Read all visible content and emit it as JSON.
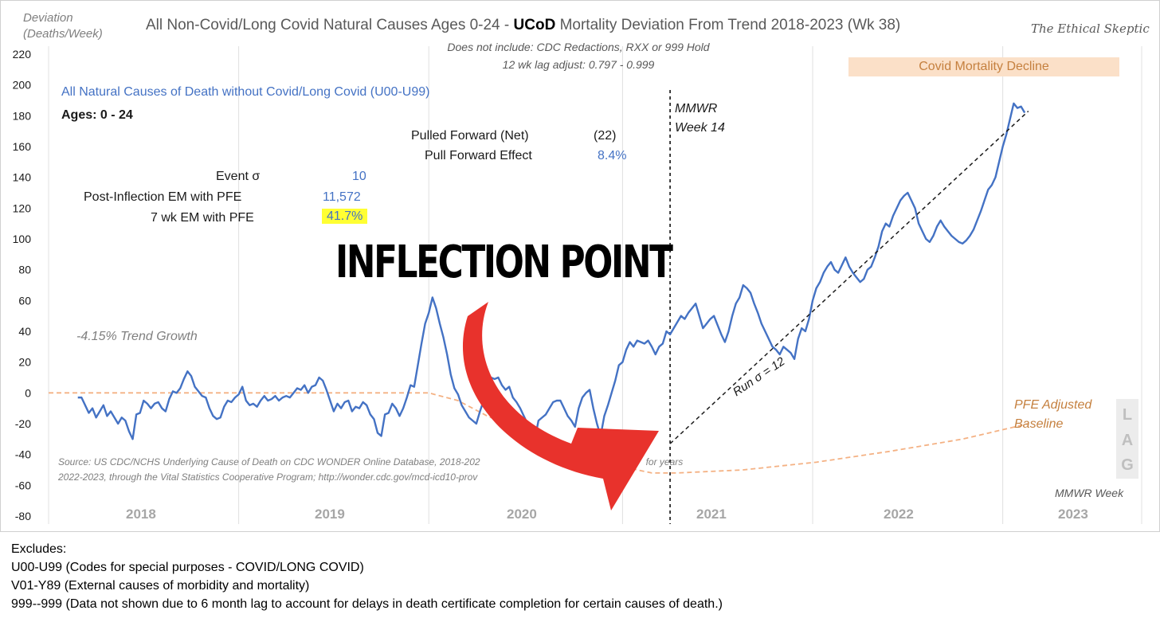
{
  "header": {
    "ylabel_line1": "Deviation",
    "ylabel_line2": "(Deaths/Week)",
    "title_pre": "All Non-Covid/Long Covid Natural Causes Ages 0-24 - ",
    "title_bold": "UCoD",
    "title_post": " Mortality Deviation From Trend  2018-2023 (Wk 38)",
    "brand": "The Ethical Skeptic",
    "subtitle_line1": "Does not include: CDC Redactions,  RXX or 999 Hold",
    "subtitle_line2": "12 wk lag adjust: 0.797 - 0.999"
  },
  "annotations": {
    "series_label": "All Natural Causes of Death without Covid/Long Covid (U00-U99)",
    "ages": "Ages: 0 - 24",
    "pulled_forward_label": "Pulled Forward (Net)",
    "pulled_forward_value": "(22)",
    "pull_forward_effect_label": "Pull Forward Effect",
    "pull_forward_effect_value": "8.4%",
    "event_sigma_label": "Event σ",
    "event_sigma_value": "10",
    "post_inflection_label": "Post-Inflection EM with PFE",
    "post_inflection_value": "11,572",
    "seven_wk_label": "7 wk EM with PFE",
    "seven_wk_value": "41.7%",
    "trend_growth": "-4.15% Trend Growth",
    "mmwr_line1": "MMWR",
    "mmwr_line2": "Week 14",
    "inflection_point": "INFLECTION POINT",
    "run_sigma": "Run σ = 12",
    "covid_decline": "Covid Mortality Decline",
    "pfe_line1": "PFE Adjusted",
    "pfe_line2": "Baseline",
    "lag_letters": [
      "L",
      "A",
      "G"
    ],
    "mmwr_week_axis": "MMWR Week",
    "source_line1": "Source: US CDC/NCHS Underlying Cause of Death on CDC WONDER Online Database, 2018-202",
    "source_line1_tail": "for years",
    "source_line2": "2022-2023, through the Vital Statistics Cooperative Program; http://wonder.cdc.gov/mcd-icd10-prov"
  },
  "footer": {
    "heading": "Excludes:",
    "lines": [
      "U00-U99 (Codes for special purposes - COVID/LONG COVID)",
      "V01-Y89 (External causes of morbidity and mortality)",
      "999--999 (Data not shown due to 6 month lag to account for delays in death certificate completion for certain causes of death.)"
    ]
  },
  "colors": {
    "series": "#4472c4",
    "baseline": "#f4b183",
    "arrow": "#e8322c",
    "band": "#fbe0c8",
    "grid": "#e0e0e0"
  },
  "chart_data": {
    "type": "line",
    "x_unit": "MMWR week (2018 wk 1 = 0)",
    "ylim": [
      -80,
      220
    ],
    "yticks": [
      -80,
      -60,
      -40,
      -20,
      0,
      20,
      40,
      60,
      80,
      100,
      120,
      140,
      160,
      180,
      200,
      220
    ],
    "year_labels": [
      "2018",
      "2019",
      "2020",
      "2021",
      "2022",
      "2023"
    ],
    "year_boundaries": [
      0,
      52,
      104,
      157,
      209,
      261,
      299
    ],
    "inflection_week": 170,
    "series": [
      {
        "name": "All Natural Causes of Death without Covid/Long Covid (U00-U99)",
        "points": [
          [
            8,
            -3
          ],
          [
            9,
            -3
          ],
          [
            10,
            -8
          ],
          [
            11,
            -13
          ],
          [
            12,
            -10
          ],
          [
            13,
            -16
          ],
          [
            14,
            -12
          ],
          [
            15,
            -8
          ],
          [
            16,
            -15
          ],
          [
            17,
            -12
          ],
          [
            18,
            -16
          ],
          [
            19,
            -20
          ],
          [
            20,
            -16
          ],
          [
            21,
            -18
          ],
          [
            22,
            -25
          ],
          [
            23,
            -30
          ],
          [
            24,
            -14
          ],
          [
            25,
            -13
          ],
          [
            26,
            -5
          ],
          [
            27,
            -7
          ],
          [
            28,
            -10
          ],
          [
            29,
            -7
          ],
          [
            30,
            -6
          ],
          [
            31,
            -10
          ],
          [
            32,
            -12
          ],
          [
            33,
            -4
          ],
          [
            34,
            1
          ],
          [
            35,
            0
          ],
          [
            36,
            3
          ],
          [
            37,
            9
          ],
          [
            38,
            14
          ],
          [
            39,
            11
          ],
          [
            40,
            4
          ],
          [
            41,
            1
          ],
          [
            42,
            -2
          ],
          [
            43,
            -3
          ],
          [
            44,
            -10
          ],
          [
            45,
            -15
          ],
          [
            46,
            -17
          ],
          [
            47,
            -16
          ],
          [
            48,
            -9
          ],
          [
            49,
            -5
          ],
          [
            50,
            -6
          ],
          [
            51,
            -3
          ],
          [
            52,
            -1
          ],
          [
            53,
            4
          ],
          [
            54,
            -5
          ],
          [
            55,
            -8
          ],
          [
            56,
            -7
          ],
          [
            57,
            -9
          ],
          [
            58,
            -5
          ],
          [
            59,
            -2
          ],
          [
            60,
            -5
          ],
          [
            61,
            -4
          ],
          [
            62,
            -2
          ],
          [
            63,
            -5
          ],
          [
            64,
            -3
          ],
          [
            65,
            -2
          ],
          [
            66,
            -3
          ],
          [
            67,
            0
          ],
          [
            68,
            3
          ],
          [
            69,
            2
          ],
          [
            70,
            5
          ],
          [
            71,
            0
          ],
          [
            72,
            4
          ],
          [
            73,
            5
          ],
          [
            74,
            10
          ],
          [
            75,
            8
          ],
          [
            76,
            2
          ],
          [
            77,
            -5
          ],
          [
            78,
            -12
          ],
          [
            79,
            -7
          ],
          [
            80,
            -10
          ],
          [
            81,
            -6
          ],
          [
            82,
            -5
          ],
          [
            83,
            -12
          ],
          [
            84,
            -9
          ],
          [
            85,
            -10
          ],
          [
            86,
            -6
          ],
          [
            87,
            -8
          ],
          [
            88,
            -14
          ],
          [
            89,
            -17
          ],
          [
            90,
            -26
          ],
          [
            91,
            -28
          ],
          [
            92,
            -14
          ],
          [
            93,
            -13
          ],
          [
            94,
            -7
          ],
          [
            95,
            -10
          ],
          [
            96,
            -15
          ],
          [
            97,
            -10
          ],
          [
            98,
            -3
          ],
          [
            99,
            5
          ],
          [
            100,
            4
          ],
          [
            101,
            18
          ],
          [
            102,
            32
          ],
          [
            103,
            45
          ],
          [
            104,
            52
          ],
          [
            105,
            62
          ],
          [
            106,
            55
          ],
          [
            107,
            45
          ],
          [
            108,
            36
          ],
          [
            109,
            25
          ],
          [
            110,
            12
          ],
          [
            111,
            3
          ],
          [
            112,
            -1
          ],
          [
            113,
            -8
          ],
          [
            114,
            -12
          ],
          [
            115,
            -16
          ],
          [
            116,
            -18
          ],
          [
            117,
            -20
          ],
          [
            118,
            -12
          ],
          [
            119,
            -5
          ],
          [
            120,
            0
          ],
          [
            121,
            10
          ],
          [
            122,
            9
          ],
          [
            123,
            10
          ],
          [
            124,
            5
          ],
          [
            125,
            2
          ],
          [
            126,
            4
          ],
          [
            127,
            -3
          ],
          [
            128,
            -6
          ],
          [
            129,
            -10
          ],
          [
            130,
            -15
          ],
          [
            131,
            -20
          ],
          [
            132,
            -25
          ],
          [
            133,
            -30
          ],
          [
            134,
            -18
          ],
          [
            135,
            -16
          ],
          [
            136,
            -14
          ],
          [
            137,
            -10
          ],
          [
            138,
            -6
          ],
          [
            139,
            -5
          ],
          [
            140,
            -5
          ],
          [
            141,
            -10
          ],
          [
            142,
            -15
          ],
          [
            143,
            -18
          ],
          [
            144,
            -22
          ],
          [
            145,
            -10
          ],
          [
            146,
            -3
          ],
          [
            147,
            0
          ],
          [
            148,
            2
          ],
          [
            149,
            -10
          ],
          [
            150,
            -20
          ],
          [
            151,
            -28
          ],
          [
            152,
            -15
          ],
          [
            153,
            -8
          ],
          [
            154,
            0
          ],
          [
            155,
            8
          ],
          [
            156,
            18
          ],
          [
            157,
            20
          ],
          [
            158,
            28
          ],
          [
            159,
            33
          ],
          [
            160,
            30
          ],
          [
            161,
            34
          ],
          [
            162,
            33
          ],
          [
            163,
            32
          ],
          [
            164,
            34
          ],
          [
            165,
            30
          ],
          [
            166,
            25
          ],
          [
            167,
            30
          ],
          [
            168,
            32
          ],
          [
            169,
            40
          ],
          [
            170,
            38
          ],
          [
            171,
            42
          ],
          [
            172,
            46
          ],
          [
            173,
            50
          ],
          [
            174,
            48
          ],
          [
            175,
            52
          ],
          [
            176,
            55
          ],
          [
            177,
            58
          ],
          [
            178,
            50
          ],
          [
            179,
            42
          ],
          [
            180,
            45
          ],
          [
            181,
            48
          ],
          [
            182,
            50
          ],
          [
            183,
            44
          ],
          [
            184,
            38
          ],
          [
            185,
            33
          ],
          [
            186,
            40
          ],
          [
            187,
            50
          ],
          [
            188,
            58
          ],
          [
            189,
            62
          ],
          [
            190,
            70
          ],
          [
            191,
            68
          ],
          [
            192,
            65
          ],
          [
            193,
            58
          ],
          [
            194,
            52
          ],
          [
            195,
            45
          ],
          [
            196,
            40
          ],
          [
            197,
            35
          ],
          [
            198,
            30
          ],
          [
            199,
            28
          ],
          [
            200,
            25
          ],
          [
            201,
            30
          ],
          [
            202,
            28
          ],
          [
            203,
            26
          ],
          [
            204,
            22
          ],
          [
            205,
            35
          ],
          [
            206,
            42
          ],
          [
            207,
            40
          ],
          [
            208,
            48
          ],
          [
            209,
            60
          ],
          [
            210,
            68
          ],
          [
            211,
            72
          ],
          [
            212,
            78
          ],
          [
            213,
            82
          ],
          [
            214,
            85
          ],
          [
            215,
            80
          ],
          [
            216,
            78
          ],
          [
            217,
            83
          ],
          [
            218,
            88
          ],
          [
            219,
            82
          ],
          [
            220,
            78
          ],
          [
            221,
            75
          ],
          [
            222,
            72
          ],
          [
            223,
            74
          ],
          [
            224,
            80
          ],
          [
            225,
            82
          ],
          [
            226,
            88
          ],
          [
            227,
            95
          ],
          [
            228,
            105
          ],
          [
            229,
            110
          ],
          [
            230,
            108
          ],
          [
            231,
            115
          ],
          [
            232,
            120
          ],
          [
            233,
            125
          ],
          [
            234,
            128
          ],
          [
            235,
            130
          ],
          [
            236,
            125
          ],
          [
            237,
            120
          ],
          [
            238,
            110
          ],
          [
            239,
            105
          ],
          [
            240,
            100
          ],
          [
            241,
            98
          ],
          [
            242,
            102
          ],
          [
            243,
            108
          ],
          [
            244,
            112
          ],
          [
            245,
            108
          ],
          [
            246,
            105
          ],
          [
            247,
            102
          ],
          [
            248,
            100
          ],
          [
            249,
            98
          ],
          [
            250,
            97
          ],
          [
            251,
            99
          ],
          [
            252,
            102
          ],
          [
            253,
            106
          ],
          [
            254,
            112
          ],
          [
            255,
            118
          ],
          [
            256,
            125
          ],
          [
            257,
            132
          ],
          [
            258,
            135
          ],
          [
            259,
            140
          ],
          [
            260,
            150
          ],
          [
            261,
            160
          ],
          [
            262,
            168
          ],
          [
            263,
            178
          ],
          [
            264,
            188
          ],
          [
            265,
            185
          ],
          [
            266,
            186
          ],
          [
            267,
            182
          ]
        ]
      },
      {
        "name": "PFE Adjusted Baseline",
        "points": [
          [
            0,
            0
          ],
          [
            20,
            0
          ],
          [
            52,
            0
          ],
          [
            90,
            0
          ],
          [
            104,
            0
          ],
          [
            112,
            -5
          ],
          [
            120,
            -15
          ],
          [
            130,
            -25
          ],
          [
            140,
            -35
          ],
          [
            150,
            -42
          ],
          [
            157,
            -48
          ],
          [
            165,
            -52
          ],
          [
            172,
            -52
          ],
          [
            190,
            -50
          ],
          [
            210,
            -45
          ],
          [
            230,
            -38
          ],
          [
            250,
            -30
          ],
          [
            268,
            -20
          ]
        ]
      }
    ],
    "trend_line": [
      [
        170,
        -33
      ],
      [
        268,
        183
      ]
    ]
  }
}
